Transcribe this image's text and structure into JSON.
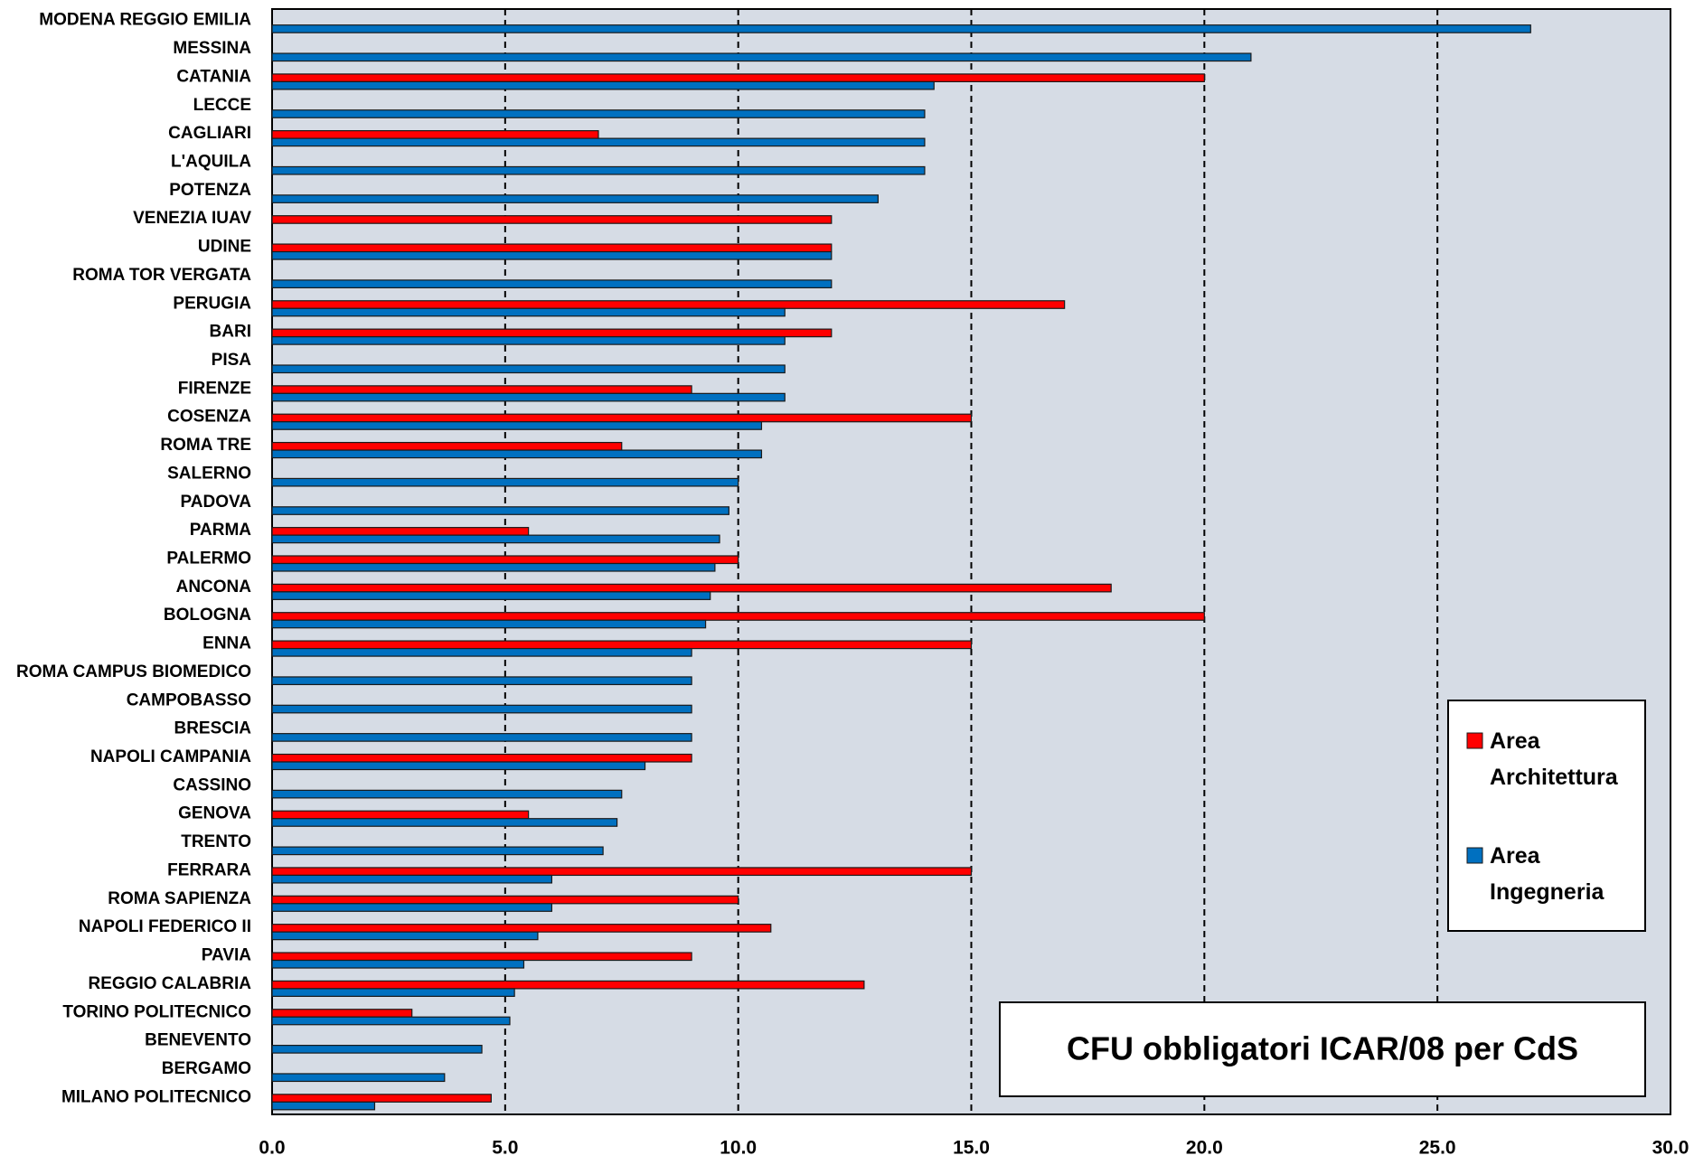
{
  "chart_data": {
    "type": "bar",
    "orientation": "horizontal",
    "title": "CFU obbligatori ICAR/08 per CdS",
    "categories": [
      "MODENA REGGIO EMILIA",
      "MESSINA",
      "CATANIA",
      "LECCE",
      "CAGLIARI",
      "L'AQUILA",
      "POTENZA",
      "VENEZIA IUAV",
      "UDINE",
      "ROMA TOR VERGATA",
      "PERUGIA",
      "BARI",
      "PISA",
      "FIRENZE",
      "COSENZA",
      "ROMA TRE",
      "SALERNO",
      "PADOVA",
      "PARMA",
      "PALERMO",
      "ANCONA",
      "BOLOGNA",
      "ENNA",
      "ROMA CAMPUS BIOMEDICO",
      "CAMPOBASSO",
      "BRESCIA",
      "NAPOLI CAMPANIA",
      "CASSINO",
      "GENOVA",
      "TRENTO",
      "FERRARA",
      "ROMA SAPIENZA",
      "NAPOLI FEDERICO II",
      "PAVIA",
      "REGGIO CALABRIA",
      "TORINO POLITECNICO",
      "BENEVENTO",
      "BERGAMO",
      "MILANO POLITECNICO"
    ],
    "series": [
      {
        "name": "Area Architettura",
        "color": "#ff0000",
        "values": [
          null,
          null,
          20,
          null,
          7,
          null,
          null,
          12,
          12,
          null,
          17,
          12,
          null,
          9,
          15,
          7.5,
          null,
          null,
          5.5,
          10,
          18,
          20,
          15,
          null,
          null,
          null,
          9,
          null,
          5.5,
          null,
          15,
          10,
          10.7,
          9,
          12.7,
          3,
          null,
          null,
          4.7
        ]
      },
      {
        "name": "Area Ingegneria",
        "color": "#0070c0",
        "values": [
          27,
          21,
          14.2,
          14,
          14,
          14,
          13,
          null,
          12,
          12,
          11,
          11,
          11,
          11,
          10.5,
          10.5,
          10,
          9.8,
          9.6,
          9.5,
          9.4,
          9.3,
          9,
          9,
          9,
          9,
          8,
          7.5,
          7.4,
          7.1,
          6,
          6,
          5.7,
          5.4,
          5.2,
          5.1,
          4.5,
          3.7,
          2.2
        ]
      }
    ],
    "xlim": [
      0,
      30
    ],
    "xticks": [
      {
        "value": 0,
        "label": "0.0"
      },
      {
        "value": 5,
        "label": "5.0"
      },
      {
        "value": 10,
        "label": "10.0"
      },
      {
        "value": 15,
        "label": "15.0"
      },
      {
        "value": 20,
        "label": "20.0"
      },
      {
        "value": 25,
        "label": "25.0"
      },
      {
        "value": 30,
        "label": "30.0"
      }
    ],
    "grid": true,
    "legend": "lower right"
  }
}
